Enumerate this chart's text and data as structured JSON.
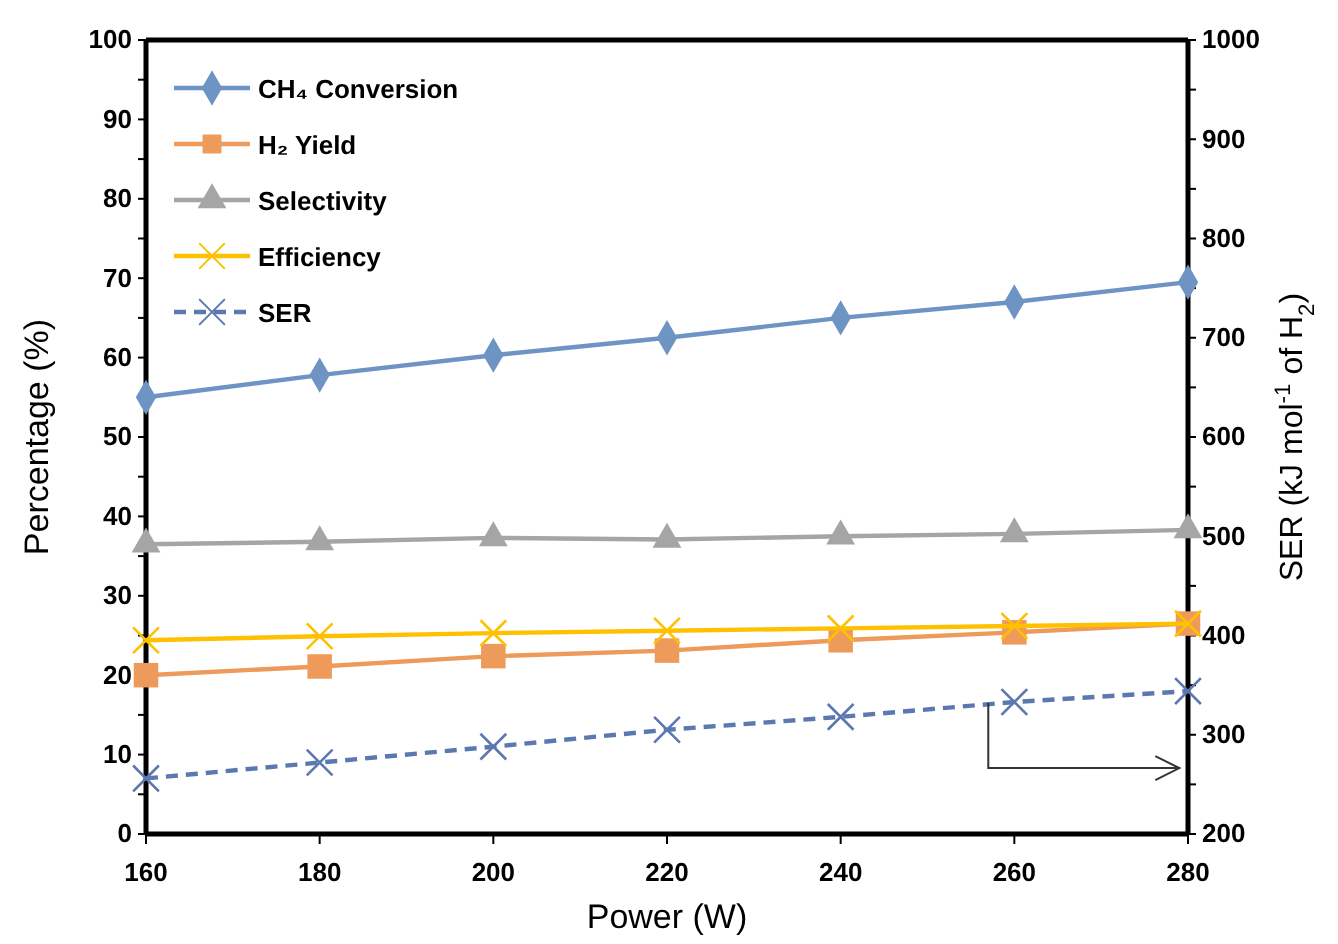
{
  "chart_data": {
    "type": "line",
    "xlabel": "Power (W)",
    "ylabel": "Percentage (%)",
    "y2label": "SER  (kJ mol$^{-1}$ of H$_{2}$)",
    "x": [
      160,
      180,
      200,
      220,
      240,
      260,
      280
    ],
    "xlim": [
      160,
      280
    ],
    "xticks": [
      160,
      180,
      200,
      220,
      240,
      260,
      280
    ],
    "ylim": [
      0,
      100
    ],
    "yticks": [
      0,
      {
        "value": 5,
        "label": null
      },
      10,
      {
        "value": 15,
        "label": null
      },
      20,
      {
        "value": 25,
        "label": null
      },
      30,
      {
        "value": 35,
        "label": null
      },
      40,
      {
        "value": 45,
        "label": null
      },
      50,
      {
        "value": 55,
        "label": null
      },
      60,
      {
        "value": 65,
        "label": null
      },
      70,
      {
        "value": 75,
        "label": null
      },
      80,
      {
        "value": 85,
        "label": null
      },
      90,
      {
        "value": 95,
        "label": null
      },
      100
    ],
    "y2lim": [
      200,
      1000
    ],
    "y2ticks": [
      200,
      {
        "value": 250,
        "label": null
      },
      300,
      {
        "value": 350,
        "label": null
      },
      400,
      {
        "value": 450,
        "label": null
      },
      500,
      {
        "value": 550,
        "label": null
      },
      600,
      {
        "value": 650,
        "label": null
      },
      700,
      {
        "value": 750,
        "label": null
      },
      800,
      {
        "value": 850,
        "label": null
      },
      900,
      {
        "value": 950,
        "label": null
      },
      1000
    ],
    "legend": "top left",
    "grid": false,
    "series": [
      {
        "name": "CH₄ Conversion",
        "color": "#6e94c4",
        "marker": "diamond",
        "line_style": "solid",
        "values": [
          55,
          57.8,
          60.3,
          62.5,
          65,
          67,
          69.5
        ]
      },
      {
        "name": "H₂ Yield",
        "color": "#ed9a5a",
        "marker": "square",
        "line_style": "solid",
        "values": [
          20,
          21.1,
          22.4,
          23.1,
          24.4,
          25.4,
          26.5
        ]
      },
      {
        "name": "Selectivity",
        "color": "#a5a5a5",
        "marker": "triangle",
        "line_style": "solid",
        "values": [
          36.5,
          36.8,
          37.3,
          37.1,
          37.5,
          37.8,
          38.3
        ]
      },
      {
        "name": "Efficiency",
        "color": "#ffc000",
        "marker": "cross",
        "line_style": "solid",
        "values": [
          24.4,
          24.9,
          25.3,
          25.6,
          25.9,
          26.2,
          26.5
        ]
      },
      {
        "name": "SER",
        "color": "#5b78b0",
        "marker": "cross",
        "line_style": "dashed",
        "axis": "y2",
        "values": [
          256,
          272,
          288,
          305,
          318,
          333,
          344
        ]
      }
    ]
  }
}
